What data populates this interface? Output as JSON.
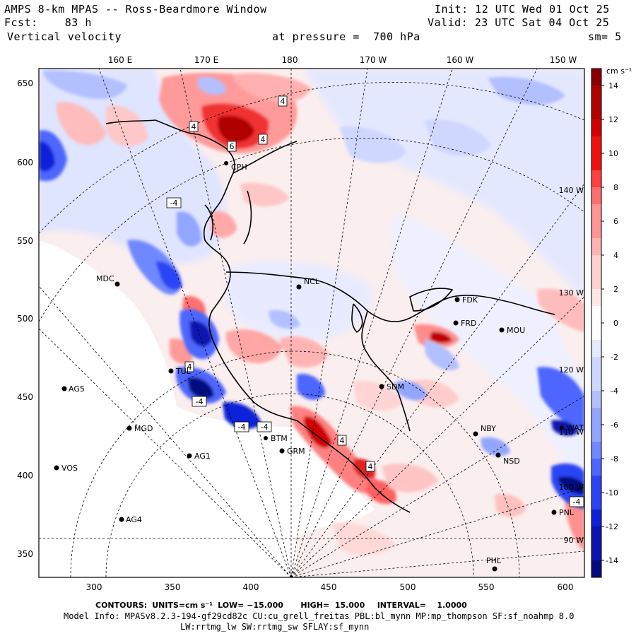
{
  "header": {
    "title": "AMPS 8-km MPAS -- Ross-Beardmore Window",
    "init": "Init: 12 UTC Wed 01 Oct 25",
    "fcst": "Fcst:    83 h",
    "valid": "Valid: 23 UTC Sat 04 Oct 25",
    "field": "Vertical velocity",
    "pressure": "at pressure =  700 hPa",
    "smooth": "sm= 5"
  },
  "axes": {
    "top_ticks": [
      "160 E",
      "170 E",
      "180",
      "170 W",
      "160 W",
      "150 W"
    ],
    "left_ticks": [
      "650",
      "600",
      "550",
      "500",
      "450",
      "400",
      "350"
    ],
    "bottom_ticks": [
      "300",
      "350",
      "400",
      "450",
      "500",
      "550",
      "600"
    ],
    "right_lon_labels": [
      "140 W",
      "130 W",
      "120 W",
      "110 W",
      "100 W",
      "90 W"
    ]
  },
  "colorbar": {
    "units": "cm s⁻¹",
    "ticks": [
      "14",
      "12",
      "10",
      "8",
      "6",
      "4",
      "2",
      "0",
      "-2",
      "-4",
      "-6",
      "-8",
      "-10",
      "-12",
      "-14"
    ],
    "positive_colors": [
      "#ffe8e8",
      "#ffd0d0",
      "#ffb4b4",
      "#ff9494",
      "#ff6e6e",
      "#ff4040",
      "#f01010",
      "#d40000",
      "#b00000",
      "#8a0000"
    ],
    "negative_colors": [
      "#e6eaff",
      "#cfd7ff",
      "#b3c0ff",
      "#93a6ff",
      "#7088ff",
      "#4d66ff",
      "#2a44f5",
      "#1020d8",
      "#0a12b0",
      "#060a80"
    ]
  },
  "stations": [
    {
      "id": "CPH",
      "label": "CPH"
    },
    {
      "id": "MDC",
      "label": "MDC"
    },
    {
      "id": "NCL",
      "label": "NCL"
    },
    {
      "id": "FDK",
      "label": "FDK"
    },
    {
      "id": "FRD",
      "label": "FRD"
    },
    {
      "id": "MOU",
      "label": "MOU"
    },
    {
      "id": "TUL",
      "label": "TUL"
    },
    {
      "id": "AG5",
      "label": "AG5"
    },
    {
      "id": "SDM",
      "label": "SDM"
    },
    {
      "id": "MGD",
      "label": "MGD"
    },
    {
      "id": "NBY",
      "label": "NBY"
    },
    {
      "id": "BTM",
      "label": "BTM"
    },
    {
      "id": "GRM",
      "label": "GRM"
    },
    {
      "id": "AG1",
      "label": "AG1"
    },
    {
      "id": "NSD",
      "label": "NSD"
    },
    {
      "id": "VOS",
      "label": "VOS"
    },
    {
      "id": "AG4",
      "label": "AG4"
    },
    {
      "id": "PNL",
      "label": "PNL"
    },
    {
      "id": "PHL",
      "label": "PHL"
    },
    {
      "id": "WAT",
      "label": "WAT"
    }
  ],
  "contour_labels": [
    "4",
    "4",
    "6",
    "4",
    "-4",
    "4",
    "-4",
    "-4",
    "-4",
    "4",
    "4",
    "-4"
  ],
  "footer": {
    "contours_prefix": "CONTOURS:",
    "units": "UNITS=cm s⁻¹",
    "low": "LOW= −15.000",
    "high": "HIGH=  15.000",
    "interval": "INTERVAL=    1.0000",
    "model_info": "Model Info: MPASv8.2.3-194-gf29cd82c CU:cu_grell_freitas PBL:bl_mynn MP:mp_thompson SF:sf_noahmp 8.0",
    "model_info2": "LW:rrtmg_lw SW:rrtmg_sw SFLAY:sf_mynn"
  }
}
